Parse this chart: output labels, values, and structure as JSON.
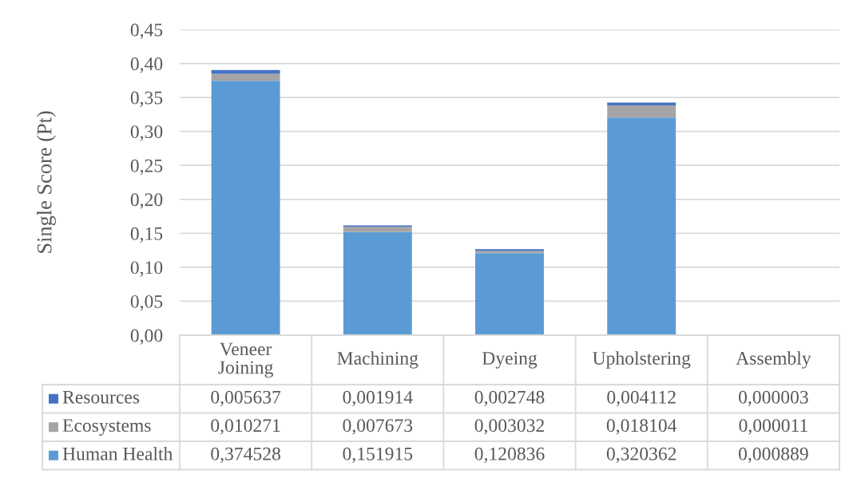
{
  "chart_data": {
    "type": "bar",
    "stacked": true,
    "ylabel": "Single Score (Pt)",
    "categories": [
      "Veneer Joining",
      "Machining",
      "Dyeing",
      "Upholstering",
      "Assembly"
    ],
    "series": [
      {
        "name": "Human Health",
        "color": "#5b9bd5",
        "values": [
          0.374528,
          0.151915,
          0.120836,
          0.320362,
          0.000889
        ],
        "value_labels": [
          "0,374528",
          "0,151915",
          "0,120836",
          "0,320362",
          "0,000889"
        ]
      },
      {
        "name": "Ecosystems",
        "color": "#a5a5a5",
        "values": [
          0.010271,
          0.007673,
          0.003032,
          0.018104,
          1.1e-05
        ],
        "value_labels": [
          "0,010271",
          "0,007673",
          "0,003032",
          "0,018104",
          "0,000011"
        ]
      },
      {
        "name": "Resources",
        "color": "#4472c4",
        "values": [
          0.005637,
          0.001914,
          0.002748,
          0.004112,
          3e-06
        ],
        "value_labels": [
          "0,005637",
          "0,001914",
          "0,002748",
          "0,004112",
          "0,000003"
        ]
      }
    ],
    "ylim": [
      0,
      0.45
    ],
    "yticks": [
      {
        "value": 0,
        "label": "0,00"
      },
      {
        "value": 0.05,
        "label": "0,05"
      },
      {
        "value": 0.1,
        "label": "0,10"
      },
      {
        "value": 0.15,
        "label": "0,15"
      },
      {
        "value": 0.2,
        "label": "0,20"
      },
      {
        "value": 0.25,
        "label": "0,25"
      },
      {
        "value": 0.3,
        "label": "0,30"
      },
      {
        "value": 0.35,
        "label": "0,35"
      },
      {
        "value": 0.4,
        "label": "0,40"
      },
      {
        "value": 0.45,
        "label": "0,45"
      }
    ],
    "grid": "y",
    "legend": "bottom"
  }
}
